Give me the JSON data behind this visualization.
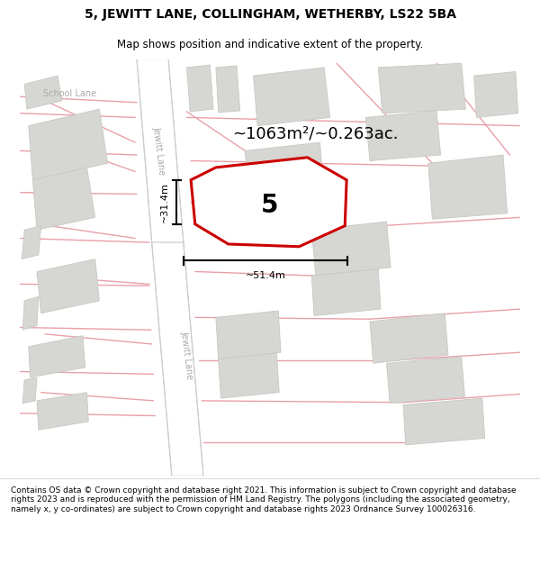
{
  "title": "5, JEWITT LANE, COLLINGHAM, WETHERBY, LS22 5BA",
  "subtitle": "Map shows position and indicative extent of the property.",
  "footer": "Contains OS data © Crown copyright and database right 2021. This information is subject to Crown copyright and database rights 2023 and is reproduced with the permission of HM Land Registry. The polygons (including the associated geometry, namely x, y co-ordinates) are subject to Crown copyright and database rights 2023 Ordnance Survey 100026316.",
  "area_label": "~1063m²/~0.263ac.",
  "number_label": "5",
  "dim_width": "~51.4m",
  "dim_height": "~31.4m",
  "street_label_upper": "Jewitt Lane",
  "street_label_lower": "Jewitt Lane",
  "school_lane_label": "School Lane",
  "bg_color": "#f2f2ee",
  "building_fill": "#d6d6d2",
  "building_edge": "#c8c8c4",
  "road_fill": "#ffffff",
  "road_edge": "#bbbbbb",
  "road_line_color": "#e8a0a8",
  "red_poly_color": "#cc0000",
  "black_color": "#000000",
  "label_color": "#aaaaaa",
  "title_fontsize": 10,
  "subtitle_fontsize": 8.5,
  "footer_fontsize": 6.5,
  "area_fontsize": 13,
  "number_fontsize": 20,
  "dim_fontsize": 8,
  "street_fontsize": 7
}
